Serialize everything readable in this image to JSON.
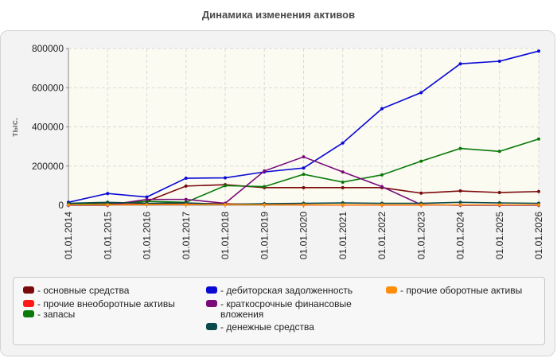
{
  "chart_data": {
    "type": "line",
    "title": "Динамика изменения активов",
    "ylabel": "тыс.",
    "xlabel": "",
    "categories": [
      "01.01.2014",
      "01.01.2015",
      "01.01.2016",
      "01.01.2017",
      "01.01.2018",
      "01.01.2019",
      "01.01.2020",
      "01.01.2021",
      "01.01.2022",
      "01.01.2023",
      "01.01.2024",
      "01.01.2025",
      "01.01.2026"
    ],
    "ylim": [
      0,
      800000
    ],
    "yticks": [
      "0",
      "200000",
      "400000",
      "600000",
      "800000"
    ],
    "grid": true,
    "legend_position": "bottom",
    "series": [
      {
        "name": "- основные средства",
        "color": "#7b0a0a",
        "values": [
          5000,
          8000,
          20000,
          98000,
          105000,
          90000,
          90000,
          90000,
          90000,
          62000,
          73000,
          65000,
          70000
        ]
      },
      {
        "name": "- прочие внеоборотные активы",
        "color": "#ff1a1a",
        "values": [
          3000,
          3000,
          8000,
          10000,
          8000,
          3000,
          2000,
          1000,
          1000,
          1000,
          1000,
          1000,
          1000
        ]
      },
      {
        "name": "- запасы",
        "color": "#0a7a0a",
        "values": [
          5000,
          5000,
          20000,
          15000,
          100000,
          95000,
          158000,
          118000,
          155000,
          225000,
          290000,
          275000,
          338000
        ]
      },
      {
        "name": "- дебиторская задолженность",
        "color": "#0a0ad4",
        "values": [
          15000,
          60000,
          42000,
          138000,
          140000,
          170000,
          190000,
          318000,
          493000,
          575000,
          722000,
          735000,
          787000
        ]
      },
      {
        "name": "- краткосрочные финансовые вложения",
        "color": "#7a0a7a",
        "values": [
          0,
          0,
          30000,
          30000,
          10000,
          175000,
          247000,
          170000,
          95000,
          3000,
          0,
          0,
          0
        ]
      },
      {
        "name": "- денежные средства",
        "color": "#0a4a4a",
        "values": [
          10000,
          15000,
          10000,
          12000,
          5000,
          8000,
          10000,
          12000,
          10000,
          10000,
          15000,
          12000,
          10000
        ]
      },
      {
        "name": "- прочие оборотные активы",
        "color": "#ff8c0a",
        "values": [
          2000,
          2000,
          3000,
          3000,
          3000,
          2000,
          2000,
          2000,
          2000,
          2000,
          2000,
          2000,
          2000
        ]
      }
    ]
  }
}
